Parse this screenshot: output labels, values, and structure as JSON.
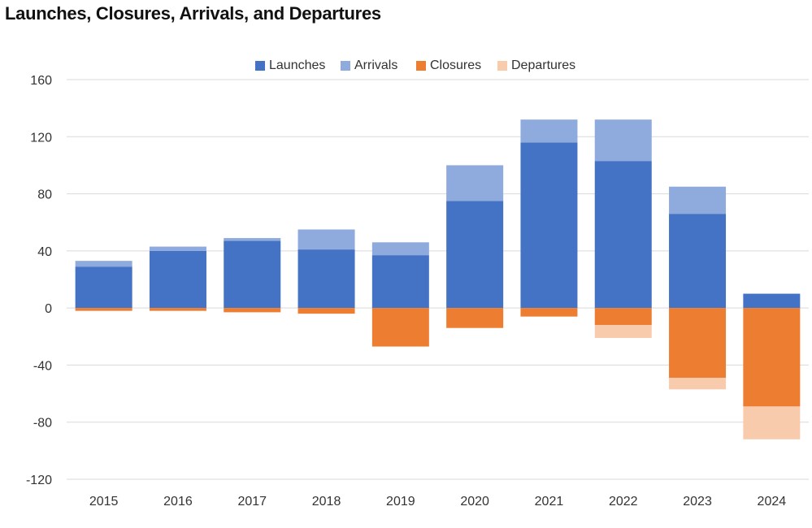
{
  "title": "Launches, Closures, Arrivals, and Departures",
  "colors": {
    "launches": "#4472c4",
    "arrivals": "#8faadc",
    "closures": "#ed7d31",
    "departures": "#f8cbad",
    "grid": "#d9d9d9",
    "text": "#333333"
  },
  "legend": [
    {
      "label": "Launches",
      "key": "launches"
    },
    {
      "label": "Arrivals",
      "key": "arrivals"
    },
    {
      "label": "Closures",
      "key": "closures"
    },
    {
      "label": "Departures",
      "key": "departures"
    }
  ],
  "chart_data": {
    "type": "bar",
    "stacked": true,
    "title": "Launches, Closures, Arrivals, and Departures",
    "xlabel": "",
    "ylabel": "",
    "categories": [
      "2015",
      "2016",
      "2017",
      "2018",
      "2019",
      "2020",
      "2021",
      "2022",
      "2023",
      "2024"
    ],
    "series": [
      {
        "name": "Launches",
        "key": "launches",
        "values": [
          29,
          40,
          47,
          41,
          37,
          75,
          116,
          103,
          66,
          10
        ]
      },
      {
        "name": "Arrivals",
        "key": "arrivals",
        "values": [
          4,
          3,
          2,
          14,
          9,
          25,
          16,
          29,
          19,
          0
        ]
      },
      {
        "name": "Closures",
        "key": "closures",
        "values": [
          -2,
          -2,
          -3,
          -4,
          -27,
          -14,
          -6,
          -12,
          -49,
          -69
        ]
      },
      {
        "name": "Departures",
        "key": "departures",
        "values": [
          0,
          0,
          0,
          0,
          0,
          0,
          0,
          -9,
          -8,
          -23
        ]
      }
    ],
    "ylim": [
      -120,
      160
    ],
    "yticks": [
      160,
      120,
      80,
      40,
      0,
      -40,
      -80,
      -120
    ],
    "grid": true,
    "legend_position": "top-center"
  }
}
